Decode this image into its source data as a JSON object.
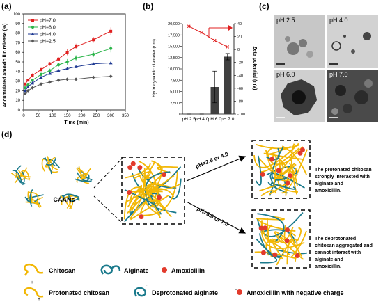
{
  "panel_labels": {
    "a": "(a)",
    "b": "(b)",
    "c": "(c)",
    "d": "(d)"
  },
  "chart_data": [
    {
      "type": "line",
      "xlabel": "Time (min)",
      "ylabel": "Accumulated amoxicillin release (%)",
      "xlim": [
        0,
        350
      ],
      "ylim": [
        0,
        100
      ],
      "xticks": [
        0,
        50,
        100,
        150,
        200,
        250,
        300,
        350
      ],
      "yticks": [
        0,
        10,
        20,
        30,
        40,
        50,
        60,
        70,
        80,
        90,
        100
      ],
      "legend_placement": "top-left",
      "grid": false,
      "series": [
        {
          "name": "pH=7.0",
          "color": "#e02020",
          "marker": "square",
          "x": [
            5,
            15,
            30,
            60,
            90,
            120,
            150,
            180,
            240,
            300
          ],
          "y": [
            27,
            31,
            36,
            42,
            48,
            53,
            60,
            66,
            73,
            82
          ],
          "err": [
            1,
            1,
            2,
            2,
            2,
            2,
            3,
            3,
            3,
            4
          ]
        },
        {
          "name": "pH=6.0",
          "color": "#2bb54a",
          "marker": "circle",
          "x": [
            5,
            15,
            30,
            60,
            90,
            120,
            150,
            180,
            240,
            300
          ],
          "y": [
            23,
            26,
            31,
            37,
            41,
            47,
            50,
            54,
            58,
            64
          ],
          "err": [
            1,
            1,
            1,
            2,
            2,
            2,
            3,
            3,
            3,
            4
          ]
        },
        {
          "name": "pH=4.0",
          "color": "#1f3a93",
          "marker": "triangle",
          "x": [
            5,
            15,
            30,
            60,
            90,
            120,
            150,
            180,
            240,
            300
          ],
          "y": [
            20,
            24,
            28,
            34,
            38,
            41,
            43,
            45,
            48,
            49
          ],
          "err": [
            1,
            1,
            1,
            1,
            1,
            1,
            1,
            1,
            1,
            1
          ]
        },
        {
          "name": "pH=2.5",
          "color": "#555555",
          "marker": "diamond",
          "x": [
            5,
            15,
            30,
            60,
            90,
            120,
            150,
            180,
            240,
            300
          ],
          "y": [
            17,
            20,
            23,
            27,
            29,
            31,
            32,
            32,
            34,
            35
          ],
          "err": [
            1,
            1,
            1,
            1,
            1,
            1,
            1,
            1,
            1,
            1
          ]
        }
      ]
    },
    {
      "type": "bar",
      "categories": [
        "pH 2.5",
        "pH 4.0",
        "pH 6.0",
        "pH 7.0"
      ],
      "ylabel": "Hydrodynamic diameter (nm)",
      "ylim": [
        0,
        20000
      ],
      "yticks": [
        0,
        2500,
        5000,
        7500,
        10000,
        12500,
        15000,
        17500,
        20000
      ],
      "ytick_labels": [
        "0",
        "2,500",
        "5,000",
        "7,500",
        "10,000",
        "12,500",
        "15,000",
        "17,500",
        "20,000"
      ],
      "values": [
        0,
        0,
        6000,
        12700
      ],
      "errors": [
        0,
        0,
        3500,
        700
      ],
      "bar_color": "#404040",
      "y2label": "Zeta potential (mV)",
      "y2lim": [
        -100,
        40
      ],
      "y2ticks": [
        -100,
        -80,
        -60,
        -40,
        -20,
        0,
        20,
        40
      ],
      "zeta_values": [
        36,
        26,
        14,
        4
      ],
      "zeta_color": "#e02020"
    }
  ],
  "tem": {
    "labels": [
      "pH 2.5",
      "pH 4.0",
      "pH 6.0",
      "pH 7.0"
    ],
    "scale_bars": [
      "0.5 µm",
      "0.5 µm",
      "0.5 µm",
      "0.5 µm"
    ]
  },
  "scheme": {
    "caans_label": "CAANs",
    "arrow_top": "pH=2.5 or 4.0",
    "arrow_bottom": "pH=6.0 or 7.0",
    "text_top": "The protonated chitosan strongly interacted with alginate and amoxicillin.",
    "text_bottom": "The deprotonated chitosan aggregated and cannot interact with alginate and amoxicillin.",
    "legend": {
      "chitosan": "Chitosan",
      "alginate": "Alginate",
      "amoxicillin": "Amoxicillin",
      "protonated_chitosan": "Protonated chitosan",
      "deprotonated_alginate": "Deprotonated alginate",
      "amox_negative": "Amoxicillin with negative charge"
    },
    "colors": {
      "chitosan": "#f2b705",
      "alginate": "#1b7a8c",
      "amoxicillin": "#e23a2c"
    }
  }
}
